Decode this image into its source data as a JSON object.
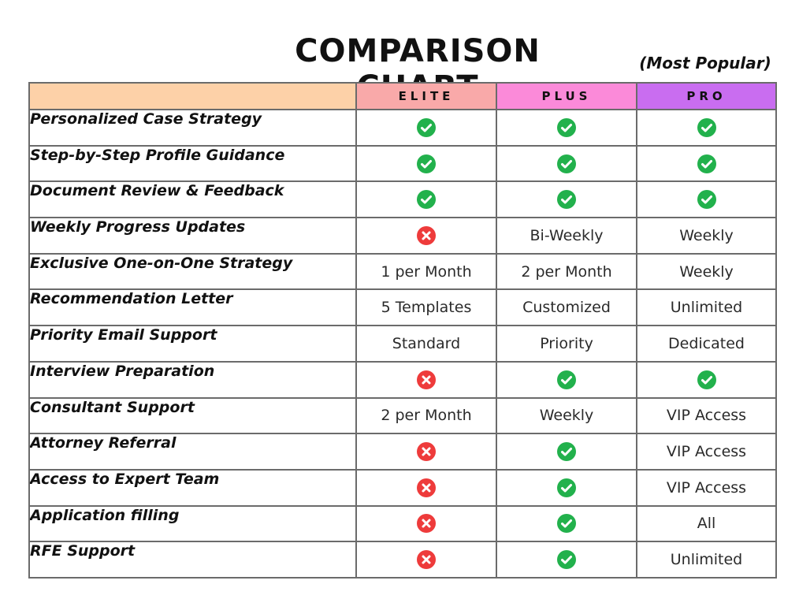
{
  "title": "COMPARISON CHART",
  "most_popular": "(Most Popular)",
  "columns": [
    "ELITE",
    "PLUS",
    "PRO"
  ],
  "colors": {
    "feature_header": "#fdd1a8",
    "elite_header": "#f9a9a9",
    "plus_header": "#fb8ad9",
    "pro_header": "#c96df0",
    "check": "#22b14c",
    "cross": "#ee3b3b"
  },
  "rows": [
    {
      "feature": "Personalized Case Strategy",
      "cells": [
        {
          "icon": "check-icon"
        },
        {
          "icon": "check-icon"
        },
        {
          "icon": "check-icon"
        }
      ]
    },
    {
      "feature": "Step-by-Step Profile Guidance",
      "cells": [
        {
          "icon": "check-icon"
        },
        {
          "icon": "check-icon"
        },
        {
          "icon": "check-icon"
        }
      ]
    },
    {
      "feature": "Document Review & Feedback",
      "cells": [
        {
          "icon": "check-icon"
        },
        {
          "icon": "check-icon"
        },
        {
          "icon": "check-icon"
        }
      ]
    },
    {
      "feature": "Weekly Progress Updates",
      "cells": [
        {
          "icon": "cross-icon"
        },
        {
          "text": "Bi-Weekly"
        },
        {
          "text": "Weekly"
        }
      ]
    },
    {
      "feature": "Exclusive One-on-One Strategy",
      "cells": [
        {
          "text": "1 per Month"
        },
        {
          "text": "2 per Month"
        },
        {
          "text": "Weekly"
        }
      ]
    },
    {
      "feature": "Recommendation Letter",
      "cells": [
        {
          "text": "5 Templates"
        },
        {
          "text": "Customized"
        },
        {
          "text": "Unlimited"
        }
      ]
    },
    {
      "feature": "Priority Email Support",
      "cells": [
        {
          "text": "Standard"
        },
        {
          "text": "Priority"
        },
        {
          "text": "Dedicated"
        }
      ]
    },
    {
      "feature": "Interview Preparation",
      "cells": [
        {
          "icon": "cross-icon"
        },
        {
          "icon": "check-icon"
        },
        {
          "icon": "check-icon"
        }
      ]
    },
    {
      "feature": "Consultant Support",
      "cells": [
        {
          "text": "2 per Month"
        },
        {
          "text": "Weekly"
        },
        {
          "text": "VIP Access"
        }
      ]
    },
    {
      "feature": "Attorney Referral",
      "cells": [
        {
          "icon": "cross-icon"
        },
        {
          "icon": "check-icon"
        },
        {
          "text": "VIP Access"
        }
      ]
    },
    {
      "feature": "Access to Expert Team",
      "cells": [
        {
          "icon": "cross-icon"
        },
        {
          "icon": "check-icon"
        },
        {
          "text": "VIP Access"
        }
      ]
    },
    {
      "feature": "Application filling",
      "cells": [
        {
          "icon": "cross-icon"
        },
        {
          "icon": "check-icon"
        },
        {
          "text": "All"
        }
      ]
    },
    {
      "feature": "RFE Support",
      "cells": [
        {
          "icon": "cross-icon"
        },
        {
          "icon": "check-icon"
        },
        {
          "text": "Unlimited"
        }
      ]
    }
  ]
}
